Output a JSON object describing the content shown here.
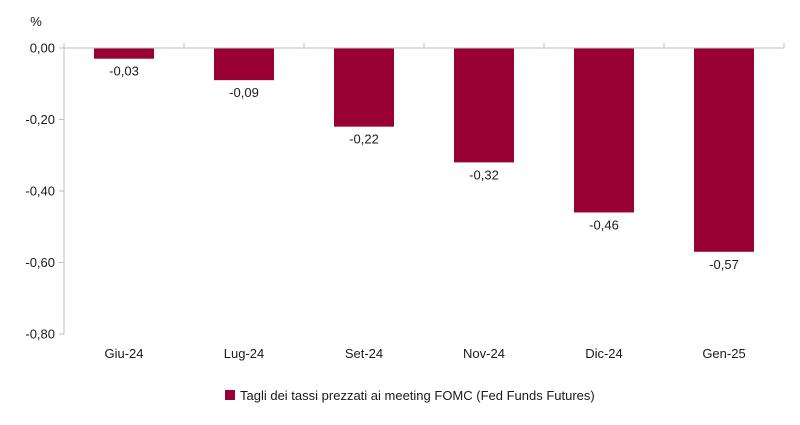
{
  "chart_data": {
    "type": "bar",
    "unit": "%",
    "categories": [
      "Giu-24",
      "Lug-24",
      "Set-24",
      "Nov-24",
      "Dic-24",
      "Gen-25"
    ],
    "series": [
      {
        "name": "Tagli dei tassi prezzati ai meeting FOMC (Fed Funds Futures)",
        "values": [
          -0.03,
          -0.09,
          -0.22,
          -0.32,
          -0.46,
          -0.57
        ],
        "labels": [
          "-0,03",
          "-0,09",
          "-0,22",
          "-0,32",
          "-0,46",
          "-0,57"
        ],
        "color": "#990033"
      }
    ],
    "ylim": [
      -0.8,
      0.0
    ],
    "yticks": [
      0.0,
      -0.2,
      -0.4,
      -0.6,
      -0.8
    ],
    "ytick_labels": [
      "0,00",
      "-0,20",
      "-0,40",
      "-0,60",
      "-0,80"
    ],
    "grid": false,
    "legend_position": "bottom",
    "axis_color": "#bfbfbf"
  }
}
